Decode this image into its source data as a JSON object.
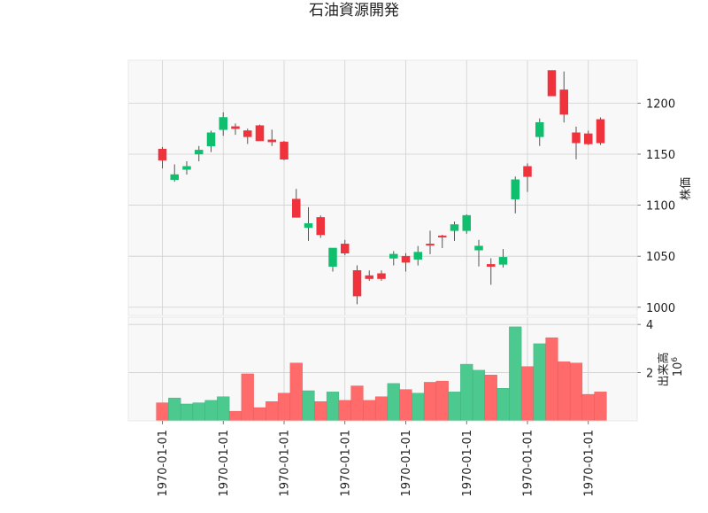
{
  "title": "石油資源開発",
  "chart_data": {
    "type": "candlestick",
    "title": "石油資源開発",
    "colors": {
      "up": "#0fbf6e",
      "down": "#f0323c",
      "volume_up": "#4cc98e",
      "volume_down": "#ff6b6b",
      "grid": "#d0d0d0",
      "panel_bg": "#f8f8f8"
    },
    "x_tick_labels": [
      "1970-01-01",
      "1970-01-01",
      "1970-01-01",
      "1970-01-01",
      "1970-01-01",
      "1970-01-01",
      "1970-01-01",
      "1970-01-01"
    ],
    "x_tick_index": [
      0,
      5,
      10,
      15,
      20,
      25,
      30,
      35
    ],
    "price_panel": {
      "ylabel": "株価",
      "ylim": [
        992,
        1242
      ],
      "yticks": [
        1000,
        1050,
        1100,
        1150,
        1200
      ],
      "grid": true
    },
    "volume_panel": {
      "ylabel": "出来高",
      "scale_label": "10^6",
      "ylim": [
        0,
        4.3
      ],
      "yticks": [
        2,
        4
      ],
      "grid": true
    },
    "candles": [
      {
        "o": 1155,
        "h": 1157,
        "l": 1136,
        "c": 1144,
        "v": 0.75
      },
      {
        "o": 1125,
        "h": 1140,
        "l": 1123,
        "c": 1130,
        "v": 0.95
      },
      {
        "o": 1135,
        "h": 1143,
        "l": 1130,
        "c": 1138,
        "v": 0.7
      },
      {
        "o": 1150,
        "h": 1158,
        "l": 1143,
        "c": 1154,
        "v": 0.75
      },
      {
        "o": 1158,
        "h": 1173,
        "l": 1152,
        "c": 1171,
        "v": 0.85
      },
      {
        "o": 1174,
        "h": 1191,
        "l": 1168,
        "c": 1186,
        "v": 1.0
      },
      {
        "o": 1177,
        "h": 1180,
        "l": 1169,
        "c": 1175,
        "v": 0.4
      },
      {
        "o": 1173,
        "h": 1175,
        "l": 1160,
        "c": 1167,
        "v": 1.95
      },
      {
        "o": 1178,
        "h": 1179,
        "l": 1163,
        "c": 1163,
        "v": 0.55
      },
      {
        "o": 1164,
        "h": 1174,
        "l": 1158,
        "c": 1162,
        "v": 0.8
      },
      {
        "o": 1162,
        "h": 1163,
        "l": 1144,
        "c": 1145,
        "v": 1.15
      },
      {
        "o": 1106,
        "h": 1116,
        "l": 1088,
        "c": 1088,
        "v": 2.4
      },
      {
        "o": 1078,
        "h": 1098,
        "l": 1065,
        "c": 1082,
        "v": 1.25
      },
      {
        "o": 1088,
        "h": 1090,
        "l": 1068,
        "c": 1071,
        "v": 0.8
      },
      {
        "o": 1040,
        "h": 1058,
        "l": 1035,
        "c": 1058,
        "v": 1.2
      },
      {
        "o": 1062,
        "h": 1066,
        "l": 1051,
        "c": 1053,
        "v": 0.85
      },
      {
        "o": 1036,
        "h": 1041,
        "l": 1003,
        "c": 1011,
        "v": 1.45
      },
      {
        "o": 1031,
        "h": 1036,
        "l": 1026,
        "c": 1028,
        "v": 0.85
      },
      {
        "o": 1033,
        "h": 1036,
        "l": 1026,
        "c": 1028,
        "v": 1.0
      },
      {
        "o": 1048,
        "h": 1055,
        "l": 1041,
        "c": 1052,
        "v": 1.55
      },
      {
        "o": 1050,
        "h": 1053,
        "l": 1035,
        "c": 1044,
        "v": 1.3
      },
      {
        "o": 1047,
        "h": 1060,
        "l": 1041,
        "c": 1054,
        "v": 1.15
      },
      {
        "o": 1062,
        "h": 1075,
        "l": 1052,
        "c": 1061,
        "v": 1.6
      },
      {
        "o": 1070,
        "h": 1071,
        "l": 1058,
        "c": 1069,
        "v": 1.65
      },
      {
        "o": 1075,
        "h": 1084,
        "l": 1065,
        "c": 1081,
        "v": 1.2
      },
      {
        "o": 1075,
        "h": 1091,
        "l": 1072,
        "c": 1090,
        "v": 2.35
      },
      {
        "o": 1056,
        "h": 1066,
        "l": 1040,
        "c": 1060,
        "v": 2.1
      },
      {
        "o": 1042,
        "h": 1048,
        "l": 1022,
        "c": 1040,
        "v": 1.9
      },
      {
        "o": 1042,
        "h": 1057,
        "l": 1039,
        "c": 1049,
        "v": 1.35
      },
      {
        "o": 1106,
        "h": 1128,
        "l": 1092,
        "c": 1125,
        "v": 3.9
      },
      {
        "o": 1138,
        "h": 1141,
        "l": 1113,
        "c": 1128,
        "v": 2.25
      },
      {
        "o": 1167,
        "h": 1185,
        "l": 1158,
        "c": 1181,
        "v": 3.2
      },
      {
        "o": 1232,
        "h": 1232,
        "l": 1207,
        "c": 1207,
        "v": 3.45
      },
      {
        "o": 1213,
        "h": 1231,
        "l": 1181,
        "c": 1189,
        "v": 2.45
      },
      {
        "o": 1171,
        "h": 1177,
        "l": 1145,
        "c": 1161,
        "v": 2.4
      },
      {
        "o": 1170,
        "h": 1173,
        "l": 1159,
        "c": 1160,
        "v": 1.1
      },
      {
        "o": 1184,
        "h": 1186,
        "l": 1159,
        "c": 1161,
        "v": 1.2
      }
    ]
  }
}
